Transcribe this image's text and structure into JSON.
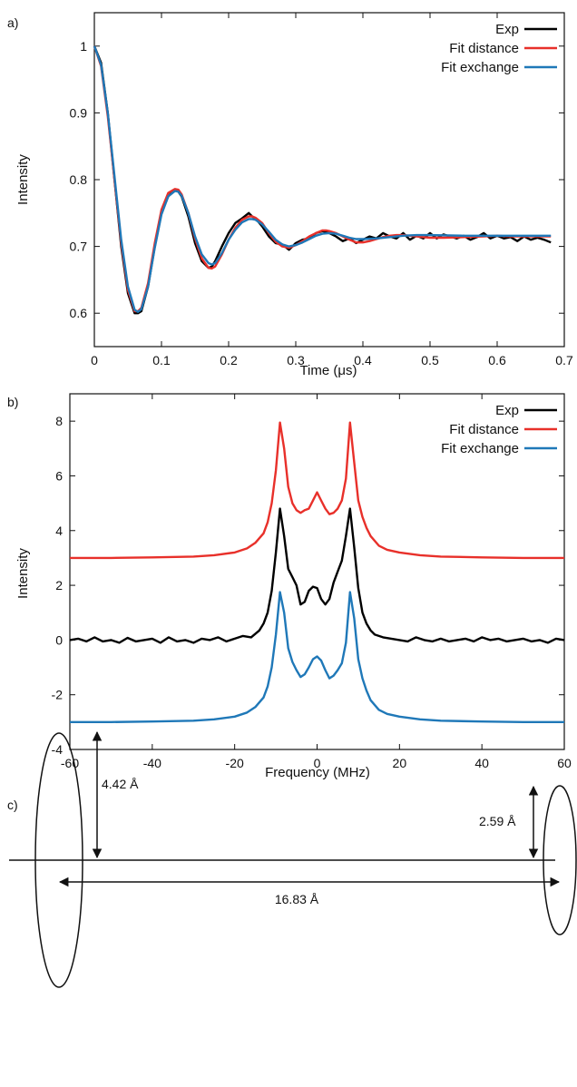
{
  "chart_data": [
    {
      "panel": "a)",
      "type": "line",
      "xlabel": "Time (μs)",
      "ylabel": "Intensity",
      "xlim": [
        0,
        0.7
      ],
      "ylim": [
        0.55,
        1.05
      ],
      "xticks": [
        "0",
        "0.1",
        "0.2",
        "0.3",
        "0.4",
        "0.5",
        "0.6",
        "0.7"
      ],
      "yticks": [
        "0.6",
        "0.7",
        "0.8",
        "0.9",
        "1"
      ],
      "xtick_values": [
        0,
        0.1,
        0.2,
        0.3,
        0.4,
        0.5,
        0.6,
        0.7
      ],
      "ytick_values": [
        0.6,
        0.7,
        0.8,
        0.9,
        1.0
      ],
      "legend_position": "top-right",
      "series": [
        {
          "name": "Exp",
          "color": "#000000",
          "x": [
            0,
            0.01,
            0.02,
            0.03,
            0.04,
            0.05,
            0.06,
            0.065,
            0.07,
            0.08,
            0.09,
            0.1,
            0.11,
            0.12,
            0.125,
            0.13,
            0.14,
            0.15,
            0.16,
            0.17,
            0.175,
            0.18,
            0.19,
            0.2,
            0.21,
            0.22,
            0.23,
            0.235,
            0.24,
            0.25,
            0.26,
            0.27,
            0.28,
            0.29,
            0.3,
            0.31,
            0.32,
            0.33,
            0.34,
            0.35,
            0.36,
            0.37,
            0.38,
            0.39,
            0.4,
            0.41,
            0.42,
            0.43,
            0.44,
            0.45,
            0.46,
            0.47,
            0.48,
            0.49,
            0.5,
            0.51,
            0.52,
            0.53,
            0.54,
            0.55,
            0.56,
            0.57,
            0.58,
            0.59,
            0.6,
            0.61,
            0.62,
            0.63,
            0.64,
            0.65,
            0.66,
            0.67,
            0.68
          ],
          "y": [
            1.0,
            0.975,
            0.9,
            0.8,
            0.7,
            0.63,
            0.6,
            0.6,
            0.603,
            0.64,
            0.7,
            0.75,
            0.775,
            0.785,
            0.782,
            0.775,
            0.745,
            0.705,
            0.678,
            0.668,
            0.67,
            0.678,
            0.7,
            0.72,
            0.735,
            0.742,
            0.75,
            0.745,
            0.742,
            0.73,
            0.715,
            0.705,
            0.703,
            0.695,
            0.705,
            0.71,
            0.712,
            0.72,
            0.723,
            0.72,
            0.715,
            0.708,
            0.712,
            0.705,
            0.71,
            0.715,
            0.712,
            0.72,
            0.715,
            0.712,
            0.72,
            0.71,
            0.716,
            0.712,
            0.72,
            0.712,
            0.718,
            0.715,
            0.712,
            0.716,
            0.71,
            0.714,
            0.72,
            0.712,
            0.716,
            0.712,
            0.714,
            0.708,
            0.715,
            0.71,
            0.713,
            0.71,
            0.706
          ]
        },
        {
          "name": "Fit distance",
          "color": "#e8302a",
          "x": [
            0,
            0.01,
            0.02,
            0.03,
            0.04,
            0.05,
            0.06,
            0.065,
            0.07,
            0.08,
            0.09,
            0.1,
            0.11,
            0.12,
            0.125,
            0.13,
            0.14,
            0.15,
            0.16,
            0.17,
            0.175,
            0.18,
            0.19,
            0.2,
            0.21,
            0.22,
            0.23,
            0.235,
            0.24,
            0.25,
            0.26,
            0.27,
            0.28,
            0.29,
            0.3,
            0.31,
            0.32,
            0.33,
            0.34,
            0.345,
            0.35,
            0.36,
            0.37,
            0.38,
            0.39,
            0.4,
            0.41,
            0.42,
            0.43,
            0.44,
            0.45,
            0.46,
            0.47,
            0.48,
            0.5,
            0.52,
            0.55,
            0.58,
            0.6,
            0.62,
            0.64,
            0.66,
            0.68
          ],
          "y": [
            1.0,
            0.97,
            0.895,
            0.8,
            0.705,
            0.635,
            0.603,
            0.603,
            0.608,
            0.645,
            0.705,
            0.755,
            0.78,
            0.786,
            0.785,
            0.778,
            0.75,
            0.712,
            0.682,
            0.668,
            0.667,
            0.67,
            0.688,
            0.71,
            0.728,
            0.74,
            0.745,
            0.745,
            0.743,
            0.735,
            0.72,
            0.707,
            0.7,
            0.698,
            0.702,
            0.708,
            0.715,
            0.72,
            0.724,
            0.724,
            0.723,
            0.72,
            0.715,
            0.71,
            0.706,
            0.706,
            0.708,
            0.711,
            0.714,
            0.716,
            0.717,
            0.717,
            0.716,
            0.715,
            0.713,
            0.713,
            0.714,
            0.715,
            0.716,
            0.715,
            0.715,
            0.715,
            0.715
          ]
        },
        {
          "name": "Fit exchange",
          "color": "#1f78b8",
          "x": [
            0,
            0.01,
            0.02,
            0.03,
            0.04,
            0.05,
            0.06,
            0.065,
            0.07,
            0.08,
            0.09,
            0.1,
            0.11,
            0.12,
            0.125,
            0.13,
            0.14,
            0.15,
            0.16,
            0.17,
            0.175,
            0.18,
            0.19,
            0.2,
            0.21,
            0.22,
            0.23,
            0.235,
            0.24,
            0.25,
            0.26,
            0.27,
            0.28,
            0.29,
            0.3,
            0.31,
            0.32,
            0.33,
            0.34,
            0.35,
            0.36,
            0.37,
            0.38,
            0.39,
            0.4,
            0.42,
            0.44,
            0.46,
            0.48,
            0.5,
            0.55,
            0.6,
            0.65,
            0.68
          ],
          "y": [
            1.0,
            0.972,
            0.9,
            0.805,
            0.71,
            0.64,
            0.605,
            0.602,
            0.606,
            0.64,
            0.698,
            0.748,
            0.775,
            0.783,
            0.782,
            0.776,
            0.75,
            0.715,
            0.688,
            0.675,
            0.673,
            0.675,
            0.69,
            0.71,
            0.725,
            0.736,
            0.741,
            0.741,
            0.74,
            0.733,
            0.722,
            0.71,
            0.703,
            0.7,
            0.702,
            0.706,
            0.711,
            0.716,
            0.719,
            0.72,
            0.719,
            0.716,
            0.713,
            0.711,
            0.711,
            0.712,
            0.714,
            0.716,
            0.717,
            0.717,
            0.716,
            0.716,
            0.716,
            0.716
          ]
        }
      ]
    },
    {
      "panel": "b)",
      "type": "line",
      "xlabel": "Frequency (MHz)",
      "ylabel": "Intensity",
      "xlim": [
        -60,
        60
      ],
      "ylim": [
        -4,
        9
      ],
      "xticks": [
        "-60",
        "-40",
        "-20",
        "0",
        "20",
        "40",
        "60"
      ],
      "yticks": [
        "-4",
        "-2",
        "0",
        "2",
        "4",
        "6",
        "8"
      ],
      "xtick_values": [
        -60,
        -40,
        -20,
        0,
        20,
        40,
        60
      ],
      "ytick_values": [
        -4,
        -2,
        0,
        2,
        4,
        6,
        8
      ],
      "legend_position": "top-right",
      "series": [
        {
          "name": "Exp",
          "color": "#000000",
          "x": [
            -60,
            -58,
            -56,
            -54,
            -52,
            -50,
            -48,
            -46,
            -44,
            -42,
            -40,
            -38,
            -36,
            -34,
            -32,
            -30,
            -28,
            -26,
            -24,
            -22,
            -20,
            -18,
            -16,
            -14,
            -13,
            -12,
            -11,
            -10,
            -9,
            -8,
            -7,
            -6,
            -5,
            -4,
            -3,
            -2,
            -1,
            0,
            1,
            2,
            3,
            4,
            5,
            6,
            7,
            8,
            9,
            10,
            11,
            12,
            13,
            14,
            16,
            18,
            20,
            22,
            24,
            26,
            28,
            30,
            32,
            34,
            36,
            38,
            40,
            42,
            44,
            46,
            48,
            50,
            52,
            54,
            56,
            58,
            60
          ],
          "y": [
            0,
            0.05,
            -0.05,
            0.1,
            -0.05,
            0.0,
            -0.1,
            0.08,
            -0.05,
            0.0,
            0.05,
            -0.1,
            0.1,
            -0.05,
            0.0,
            -0.1,
            0.05,
            0.0,
            0.1,
            -0.05,
            0.05,
            0.15,
            0.1,
            0.35,
            0.6,
            1.0,
            1.8,
            3.2,
            4.8,
            3.8,
            2.6,
            2.3,
            2.0,
            1.3,
            1.4,
            1.8,
            1.95,
            1.9,
            1.5,
            1.3,
            1.5,
            2.1,
            2.5,
            2.9,
            3.8,
            4.8,
            3.4,
            1.9,
            1.0,
            0.6,
            0.35,
            0.2,
            0.1,
            0.05,
            0.0,
            -0.05,
            0.1,
            0.0,
            -0.05,
            0.05,
            -0.05,
            0.0,
            0.05,
            -0.05,
            0.1,
            0.0,
            0.05,
            -0.05,
            0.0,
            0.05,
            -0.05,
            0.0,
            -0.1,
            0.05,
            0.0
          ]
        },
        {
          "name": "Fit distance",
          "color": "#e8302a",
          "x": [
            -60,
            -50,
            -40,
            -30,
            -25,
            -20,
            -17,
            -15,
            -13,
            -12,
            -11,
            -10,
            -9,
            -8,
            -7,
            -6,
            -5,
            -4,
            -3,
            -2,
            -1,
            0,
            1,
            2,
            3,
            4,
            5,
            6,
            7,
            8,
            9,
            10,
            11,
            12,
            13,
            15,
            17,
            20,
            25,
            30,
            40,
            50,
            60
          ],
          "y": [
            3.0,
            3.0,
            3.02,
            3.05,
            3.1,
            3.2,
            3.35,
            3.55,
            3.9,
            4.3,
            5.0,
            6.2,
            7.95,
            7.0,
            5.6,
            5.0,
            4.75,
            4.65,
            4.75,
            4.8,
            5.1,
            5.4,
            5.1,
            4.8,
            4.6,
            4.65,
            4.8,
            5.1,
            5.9,
            7.95,
            6.5,
            5.1,
            4.5,
            4.1,
            3.8,
            3.45,
            3.3,
            3.2,
            3.1,
            3.05,
            3.02,
            3.0,
            3.0
          ]
        },
        {
          "name": "Fit exchange",
          "color": "#1f78b8",
          "x": [
            -60,
            -50,
            -40,
            -30,
            -25,
            -20,
            -17,
            -15,
            -13,
            -12,
            -11,
            -10,
            -9,
            -8,
            -7,
            -6,
            -5,
            -4,
            -3,
            -2,
            -1,
            0,
            1,
            2,
            3,
            4,
            5,
            6,
            7,
            8,
            9,
            10,
            11,
            12,
            13,
            15,
            17,
            20,
            25,
            30,
            40,
            50,
            60
          ],
          "y": [
            -3.0,
            -3.0,
            -2.98,
            -2.95,
            -2.9,
            -2.8,
            -2.65,
            -2.45,
            -2.1,
            -1.7,
            -1.0,
            0.2,
            1.75,
            1.0,
            -0.3,
            -0.8,
            -1.1,
            -1.35,
            -1.25,
            -1.0,
            -0.7,
            -0.6,
            -0.75,
            -1.1,
            -1.4,
            -1.3,
            -1.1,
            -0.85,
            -0.1,
            1.75,
            0.8,
            -0.7,
            -1.4,
            -1.85,
            -2.2,
            -2.55,
            -2.7,
            -2.8,
            -2.9,
            -2.95,
            -2.98,
            -3.0,
            -3.0
          ]
        }
      ]
    }
  ],
  "diagram": {
    "panel": "c)",
    "labels": {
      "height_left": "4.42 Å",
      "height_right": "2.59 Å",
      "distance": "16.83 Å"
    }
  }
}
